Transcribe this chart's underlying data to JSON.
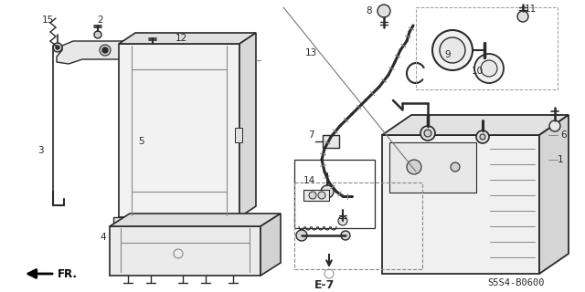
{
  "bg_color": "#ffffff",
  "line_color": "#2a2a2a",
  "gray_color": "#888888",
  "light_gray": "#cccccc",
  "diagram_code": "S5S4-B0600",
  "page_code": "E-7",
  "figsize": [
    6.4,
    3.2
  ],
  "dpi": 100
}
